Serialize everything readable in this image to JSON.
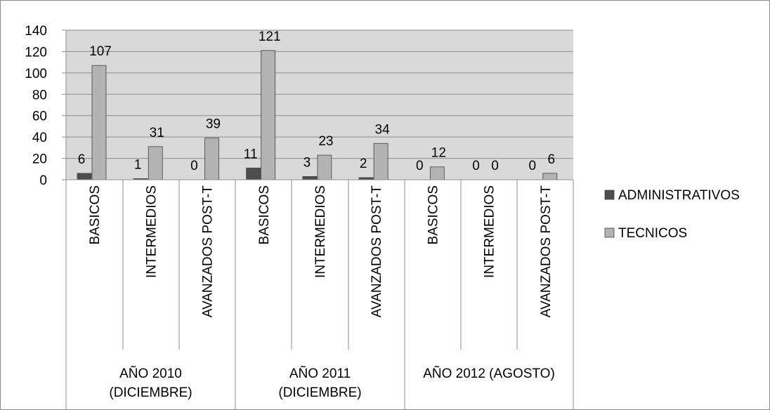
{
  "chart_data": {
    "type": "bar",
    "ylim": [
      0,
      140
    ],
    "yticks": [
      0,
      20,
      40,
      60,
      80,
      100,
      120,
      140
    ],
    "grid": true,
    "legend_position": "right",
    "groups": [
      {
        "label_lines": [
          "AÑO 2010",
          "(DICIEMBRE)"
        ],
        "categories": [
          "BASICOS",
          "INTERMEDIOS",
          "AVANZADOS POST-T"
        ]
      },
      {
        "label_lines": [
          "AÑO 2011",
          "(DICIEMBRE)"
        ],
        "categories": [
          "BASICOS",
          "INTERMEDIOS",
          "AVANZADOS POST-T"
        ]
      },
      {
        "label_lines": [
          "AÑO 2012 (AGOSTO)"
        ],
        "categories": [
          "BASICOS",
          "INTERMEDIOS",
          "AVANZADOS POST-T"
        ]
      }
    ],
    "series": [
      {
        "name": "ADMINISTRATIVOS",
        "color": "#4d4d4d",
        "values": [
          6,
          1,
          0,
          11,
          3,
          2,
          0,
          0,
          0
        ]
      },
      {
        "name": "TECNICOS",
        "color": "#b3b3b3",
        "values": [
          107,
          31,
          39,
          121,
          23,
          34,
          12,
          0,
          6
        ]
      }
    ],
    "colors": {
      "plot_background": "#d9d9d9",
      "gridline": "#8c8c8c",
      "bar_edge": "#404040"
    }
  }
}
